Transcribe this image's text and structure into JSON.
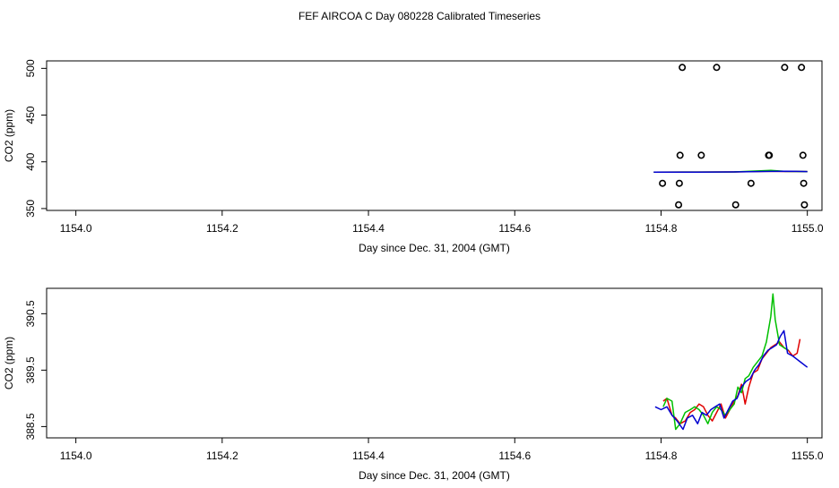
{
  "page": {
    "title": "FEF AIRCOA C  Day 080228  Calibrated Timeseries"
  },
  "colors": {
    "series_red": "#e00000",
    "series_green": "#00c000",
    "series_blue": "#0000d0",
    "points": "#000000"
  },
  "chart_data": [
    {
      "type": "scatter",
      "title": "",
      "xlabel": "Day since Dec. 31, 2004 (GMT)",
      "ylabel": "CO2 (ppm)",
      "xlim": [
        1153.96,
        1155.02
      ],
      "ylim": [
        348,
        508
      ],
      "xticks": [
        1154.0,
        1154.2,
        1154.4,
        1154.6,
        1154.8,
        1155.0
      ],
      "xtick_labels": [
        "1154.0",
        "1154.2",
        "1154.4",
        "1154.6",
        "1154.8",
        "1155.0"
      ],
      "yticks": [
        350,
        400,
        450,
        500
      ],
      "ytick_labels": [
        "350",
        "400",
        "450",
        "500"
      ],
      "points": [
        {
          "x": 1154.802,
          "y": 377
        },
        {
          "x": 1154.824,
          "y": 354
        },
        {
          "x": 1154.825,
          "y": 377
        },
        {
          "x": 1154.826,
          "y": 407
        },
        {
          "x": 1154.829,
          "y": 501
        },
        {
          "x": 1154.855,
          "y": 407
        },
        {
          "x": 1154.876,
          "y": 501
        },
        {
          "x": 1154.902,
          "y": 354
        },
        {
          "x": 1154.923,
          "y": 377
        },
        {
          "x": 1154.947,
          "y": 407
        },
        {
          "x": 1154.948,
          "y": 407
        },
        {
          "x": 1154.969,
          "y": 501
        },
        {
          "x": 1154.992,
          "y": 501
        },
        {
          "x": 1154.994,
          "y": 407
        },
        {
          "x": 1154.995,
          "y": 377
        },
        {
          "x": 1154.996,
          "y": 354
        }
      ],
      "series": [
        {
          "x": [
            1154.79,
            1154.85,
            1154.9,
            1154.95,
            1154.97,
            1155.0
          ],
          "values": [
            389.0,
            389.1,
            389.2,
            389.9,
            389.7,
            389.6
          ]
        },
        {
          "x": [
            1154.79,
            1154.85,
            1154.9,
            1154.95,
            1154.97,
            1155.0
          ],
          "values": [
            389.0,
            389.1,
            389.2,
            390.9,
            389.8,
            389.6
          ]
        },
        {
          "x": [
            1154.79,
            1154.85,
            1154.9,
            1154.95,
            1154.97,
            1155.0
          ],
          "values": [
            389.0,
            389.0,
            389.2,
            389.8,
            390.0,
            389.6
          ]
        }
      ]
    },
    {
      "type": "line",
      "title": "",
      "xlabel": "Day since Dec. 31, 2004 (GMT)",
      "ylabel": "CO2 (ppm)",
      "xlim": [
        1153.96,
        1155.02
      ],
      "ylim": [
        388.3,
        390.95
      ],
      "xticks": [
        1154.0,
        1154.2,
        1154.4,
        1154.6,
        1154.8,
        1155.0
      ],
      "xtick_labels": [
        "1154.0",
        "1154.2",
        "1154.4",
        "1154.6",
        "1154.8",
        "1155.0"
      ],
      "yticks": [
        388.5,
        389.5,
        390.5
      ],
      "ytick_labels": [
        "388.5",
        "389.5",
        "390.5"
      ],
      "series": [
        {
          "x": [
            1154.803,
            1154.808,
            1154.815,
            1154.82,
            1154.826,
            1154.833,
            1154.84,
            1154.846,
            1154.852,
            1154.858,
            1154.864,
            1154.87,
            1154.876,
            1154.882,
            1154.888,
            1154.894,
            1154.9,
            1154.905,
            1154.91,
            1154.915,
            1154.92,
            1154.926,
            1154.932,
            1154.938,
            1154.944,
            1154.95,
            1154.956,
            1154.962,
            1154.968,
            1154.974,
            1154.98,
            1154.986,
            1154.99
          ],
          "values": [
            388.95,
            389.0,
            388.7,
            388.65,
            388.55,
            388.6,
            388.75,
            388.8,
            388.9,
            388.85,
            388.7,
            388.6,
            388.75,
            388.9,
            388.65,
            388.8,
            388.95,
            389.05,
            389.25,
            388.9,
            389.2,
            389.45,
            389.5,
            389.7,
            389.8,
            389.9,
            389.95,
            390.0,
            389.9,
            389.85,
            389.75,
            389.8,
            390.05
          ]
        },
        {
          "x": [
            1154.803,
            1154.808,
            1154.815,
            1154.82,
            1154.826,
            1154.833,
            1154.84,
            1154.846,
            1154.852,
            1154.858,
            1154.864,
            1154.87,
            1154.876,
            1154.882,
            1154.888,
            1154.894,
            1154.9,
            1154.905,
            1154.91,
            1154.915,
            1154.92,
            1154.926,
            1154.932,
            1154.938,
            1154.944,
            1154.95,
            1154.953,
            1154.956,
            1154.962,
            1154.968,
            1154.974
          ],
          "values": [
            388.85,
            389.0,
            388.95,
            388.45,
            388.55,
            388.75,
            388.8,
            388.85,
            388.8,
            388.7,
            388.55,
            388.75,
            388.85,
            388.8,
            388.7,
            388.8,
            388.9,
            389.2,
            389.1,
            389.35,
            389.4,
            389.55,
            389.65,
            389.75,
            390.0,
            390.45,
            390.85,
            390.4,
            389.95,
            389.9,
            389.85
          ]
        },
        {
          "x": [
            1154.792,
            1154.8,
            1154.808,
            1154.815,
            1154.822,
            1154.83,
            1154.836,
            1154.843,
            1154.85,
            1154.856,
            1154.862,
            1154.868,
            1154.874,
            1154.88,
            1154.886,
            1154.892,
            1154.898,
            1154.904,
            1154.91,
            1154.916,
            1154.922,
            1154.928,
            1154.934,
            1154.94,
            1154.946,
            1154.952,
            1154.958,
            1154.963,
            1154.968,
            1154.973,
            1154.98,
            1154.99,
            1155.0
          ],
          "values": [
            388.85,
            388.8,
            388.85,
            388.7,
            388.6,
            388.45,
            388.65,
            388.7,
            388.55,
            388.75,
            388.7,
            388.8,
            388.85,
            388.9,
            388.65,
            388.8,
            388.95,
            389.0,
            389.2,
            389.3,
            389.35,
            389.5,
            389.6,
            389.75,
            389.85,
            389.9,
            389.95,
            390.1,
            390.2,
            389.8,
            389.75,
            389.65,
            389.55
          ]
        }
      ]
    }
  ]
}
